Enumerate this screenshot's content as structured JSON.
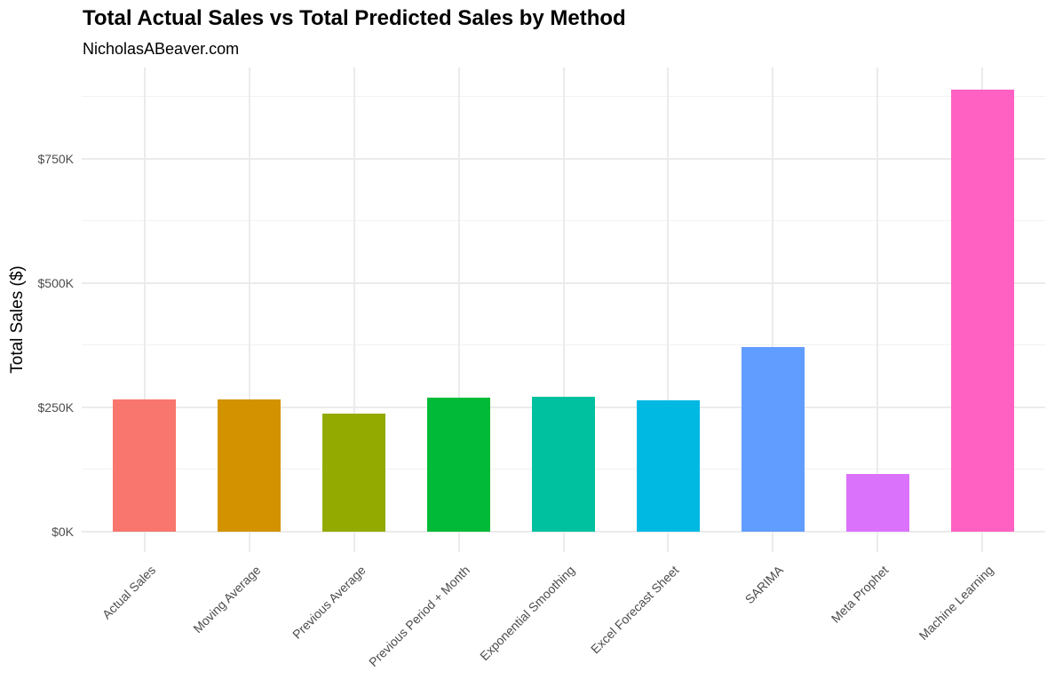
{
  "title": "Total Actual Sales vs Total Predicted Sales by Method",
  "subtitle": "NicholasABeaver.com",
  "chart_data": {
    "type": "bar",
    "title": "Total Actual Sales vs Total Predicted Sales by Method",
    "subtitle": "NicholasABeaver.com",
    "xlabel": "",
    "ylabel": "Total Sales ($)",
    "ylim": [
      0,
      900000
    ],
    "yticks": [
      0,
      250000,
      500000,
      750000
    ],
    "ytick_labels": [
      "$0K",
      "$250K",
      "$500K",
      "$750K"
    ],
    "grid": true,
    "legend": "none",
    "categories": [
      "Actual Sales",
      "Moving Average",
      "Previous Average",
      "Previous Period + Month",
      "Exponential Smoothing",
      "Excel Forecast Sheet",
      "SARIMA",
      "Meta Prophet",
      "Machine Learning"
    ],
    "values": [
      266000,
      266000,
      237500,
      270000,
      271000,
      264000,
      371000,
      116000,
      889000
    ],
    "colors": [
      "#F8766D",
      "#D39200",
      "#93AA00",
      "#00BA38",
      "#00C19F",
      "#00B9E3",
      "#619CFF",
      "#DB72FB",
      "#FF61C3"
    ]
  }
}
